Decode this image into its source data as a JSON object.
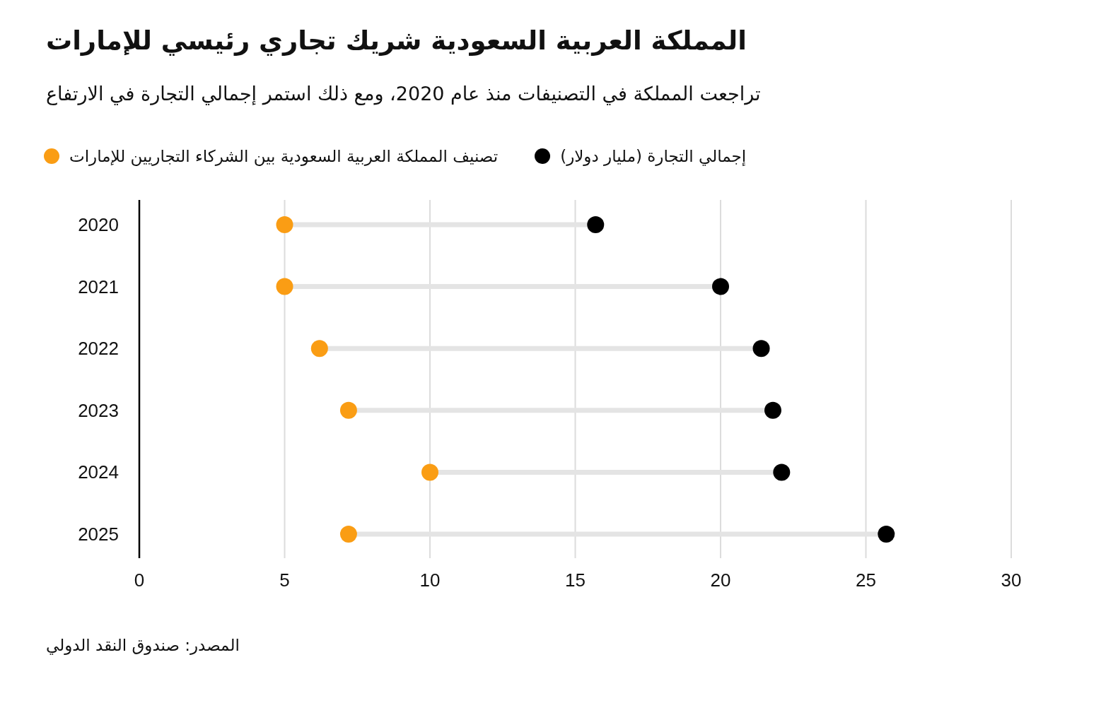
{
  "chart_data": {
    "type": "scatter",
    "orientation": "horizontal",
    "title": "المملكة العربية السعودية شريك تجاري رئيسي للإمارات",
    "subtitle": "تراجعت المملكة في التصنيفات منذ عام 2020، ومع ذلك استمر إجمالي  التجارة في الارتفاع",
    "categories": [
      "2020",
      "2021",
      "2022",
      "2023",
      "2024",
      "2025"
    ],
    "series": [
      {
        "name": "إجمالي التجارة (مليار دولار)",
        "color": "#000000",
        "values": [
          15.7,
          20,
          21.4,
          21.8,
          22.1,
          25.7
        ]
      },
      {
        "name": "تصنيف المملكة العربية السعودية بين الشركاء التجاريين للإمارات",
        "color": "#fa9d14",
        "values": [
          5,
          5,
          6.2,
          7.2,
          10,
          7.2
        ]
      }
    ],
    "xlim": [
      0,
      30
    ],
    "xticks": [
      0,
      5,
      10,
      15,
      20,
      25,
      30
    ],
    "grid": "x",
    "legend": "top left",
    "marker": "circle",
    "annotations": [
      "المصدر: صندوق النقد الدولي"
    ]
  }
}
